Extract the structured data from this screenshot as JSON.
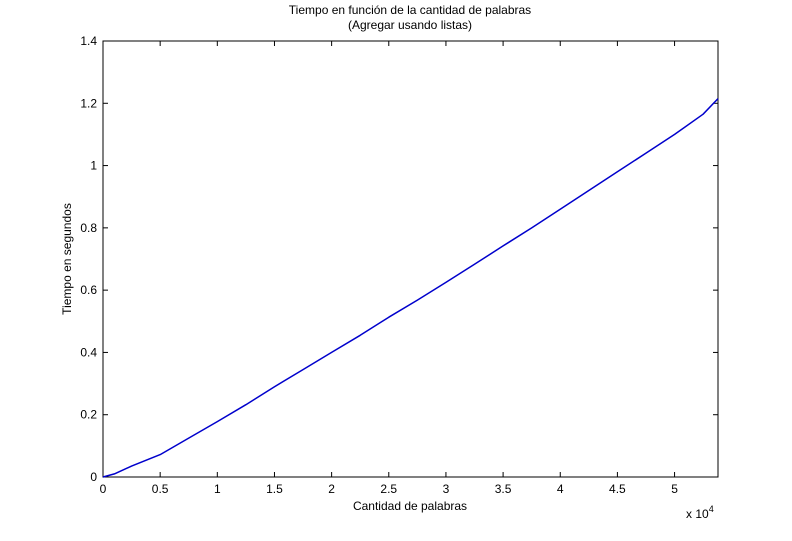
{
  "figure": {
    "background": "#ffffff"
  },
  "chart_data": {
    "type": "line",
    "title": "Tiempo en función de la cantidad de palabras",
    "subtitle": "(Agregar usando listas)",
    "xlabel": "Cantidad de palabras",
    "ylabel": "Tiempo en segundos",
    "x_exponent_label": "x 10",
    "x_exponent_power": "4",
    "xlim": [
      0,
      53800
    ],
    "ylim": [
      0,
      1.4
    ],
    "xticks": [
      0,
      5000,
      10000,
      15000,
      20000,
      25000,
      30000,
      35000,
      40000,
      45000,
      50000
    ],
    "xtick_labels": [
      "0",
      "0.5",
      "1",
      "1.5",
      "2",
      "2.5",
      "3",
      "3.5",
      "4",
      "4.5",
      "5"
    ],
    "yticks": [
      0,
      0.2,
      0.4,
      0.6,
      0.8,
      1,
      1.2,
      1.4
    ],
    "ytick_labels": [
      "0",
      "0.2",
      "0.4",
      "0.6",
      "0.8",
      "1",
      "1.2",
      "1.4"
    ],
    "grid": false,
    "line_color": "#0000cc",
    "series": [
      {
        "x": [
          0,
          1000,
          2500,
          5000,
          7500,
          10000,
          12500,
          15000,
          17500,
          20000,
          22500,
          25000,
          27500,
          30000,
          32500,
          35000,
          37500,
          40000,
          42500,
          45000,
          47500,
          50000,
          52500,
          53800
        ],
        "values": [
          0,
          0.01,
          0.035,
          0.072,
          0.125,
          0.178,
          0.232,
          0.29,
          0.345,
          0.4,
          0.455,
          0.513,
          0.568,
          0.625,
          0.683,
          0.742,
          0.8,
          0.86,
          0.92,
          0.98,
          1.04,
          1.1,
          1.165,
          1.215
        ]
      }
    ]
  }
}
